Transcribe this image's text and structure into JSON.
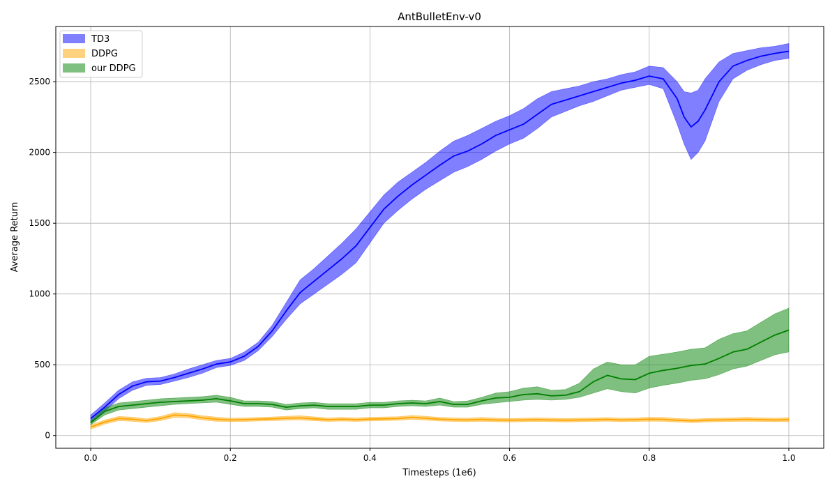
{
  "chart_data": {
    "type": "line",
    "title": "AntBulletEnv-v0",
    "xlabel": "Timesteps (1e6)",
    "ylabel": "Average Return",
    "xlim": [
      -0.05,
      1.05
    ],
    "ylim": [
      -90,
      2890
    ],
    "xticks": [
      0.0,
      0.2,
      0.4,
      0.6,
      0.8,
      1.0
    ],
    "xtick_labels": [
      "0.0",
      "0.2",
      "0.4",
      "0.6",
      "0.8",
      "1.0"
    ],
    "yticks": [
      0,
      500,
      1000,
      1500,
      2000,
      2500
    ],
    "ytick_labels": [
      "0",
      "500",
      "1000",
      "1500",
      "2000",
      "2500"
    ],
    "grid": true,
    "legend_position": "top-left",
    "x": [
      0.0,
      0.02,
      0.04,
      0.06,
      0.08,
      0.1,
      0.12,
      0.14,
      0.16,
      0.18,
      0.2,
      0.22,
      0.24,
      0.26,
      0.28,
      0.3,
      0.32,
      0.34,
      0.36,
      0.38,
      0.4,
      0.42,
      0.44,
      0.46,
      0.48,
      0.5,
      0.52,
      0.54,
      0.56,
      0.58,
      0.6,
      0.62,
      0.64,
      0.66,
      0.68,
      0.7,
      0.72,
      0.74,
      0.76,
      0.78,
      0.8,
      0.82,
      0.84,
      0.85,
      0.86,
      0.87,
      0.88,
      0.9,
      0.92,
      0.94,
      0.96,
      0.98,
      1.0
    ],
    "series": [
      {
        "name": "TD3",
        "color": "#0000ff",
        "mean": [
          120,
          200,
          290,
          350,
          380,
          385,
          410,
          440,
          470,
          505,
          520,
          560,
          630,
          740,
          880,
          1010,
          1090,
          1170,
          1250,
          1340,
          1470,
          1600,
          1690,
          1770,
          1840,
          1910,
          1975,
          2010,
          2060,
          2120,
          2160,
          2200,
          2270,
          2340,
          2370,
          2400,
          2430,
          2460,
          2490,
          2510,
          2540,
          2520,
          2380,
          2250,
          2180,
          2220,
          2300,
          2500,
          2610,
          2650,
          2680,
          2700,
          2715
        ],
        "lower": [
          95,
          170,
          260,
          320,
          355,
          360,
          385,
          410,
          440,
          480,
          495,
          530,
          600,
          700,
          820,
          930,
          1000,
          1070,
          1140,
          1220,
          1360,
          1500,
          1590,
          1670,
          1740,
          1800,
          1860,
          1900,
          1950,
          2010,
          2060,
          2100,
          2170,
          2250,
          2290,
          2330,
          2360,
          2400,
          2440,
          2460,
          2480,
          2450,
          2200,
          2060,
          1950,
          2000,
          2080,
          2360,
          2520,
          2580,
          2620,
          2650,
          2665
        ],
        "upper": [
          145,
          230,
          320,
          380,
          405,
          410,
          435,
          470,
          500,
          530,
          545,
          590,
          660,
          780,
          940,
          1100,
          1180,
          1270,
          1360,
          1460,
          1580,
          1700,
          1790,
          1860,
          1930,
          2010,
          2080,
          2120,
          2170,
          2220,
          2260,
          2310,
          2380,
          2430,
          2450,
          2470,
          2500,
          2520,
          2550,
          2570,
          2610,
          2600,
          2500,
          2430,
          2420,
          2440,
          2520,
          2640,
          2700,
          2720,
          2740,
          2750,
          2770
        ]
      },
      {
        "name": "DDPG",
        "color": "#ffa500",
        "mean": [
          60,
          95,
          120,
          115,
          105,
          120,
          145,
          140,
          125,
          115,
          110,
          112,
          115,
          118,
          122,
          125,
          118,
          112,
          115,
          112,
          116,
          118,
          120,
          128,
          122,
          115,
          112,
          110,
          114,
          110,
          108,
          110,
          112,
          110,
          108,
          110,
          112,
          114,
          110,
          112,
          115,
          114,
          108,
          106,
          104,
          105,
          108,
          110,
          112,
          114,
          112,
          110,
          112
        ],
        "lower": [
          45,
          80,
          105,
          100,
          92,
          105,
          128,
          125,
          110,
          100,
          97,
          99,
          102,
          105,
          108,
          110,
          104,
          99,
          102,
          99,
          103,
          105,
          107,
          114,
          108,
          102,
          99,
          97,
          100,
          97,
          95,
          97,
          99,
          97,
          95,
          97,
          99,
          101,
          97,
          99,
          101,
          100,
          95,
          93,
          91,
          92,
          95,
          97,
          99,
          100,
          99,
          97,
          98
        ],
        "upper": [
          75,
          110,
          135,
          130,
          118,
          135,
          162,
          155,
          140,
          130,
          123,
          125,
          128,
          131,
          136,
          140,
          132,
          125,
          128,
          125,
          129,
          131,
          133,
          142,
          136,
          128,
          125,
          123,
          128,
          123,
          121,
          123,
          125,
          123,
          121,
          123,
          125,
          127,
          123,
          125,
          129,
          128,
          121,
          119,
          117,
          118,
          121,
          123,
          125,
          128,
          125,
          123,
          126
        ]
      },
      {
        "name": "our DDPG",
        "color": "#008000",
        "mean": [
          90,
          170,
          205,
          215,
          225,
          235,
          240,
          245,
          250,
          260,
          245,
          225,
          225,
          220,
          200,
          210,
          215,
          205,
          205,
          205,
          215,
          215,
          225,
          230,
          225,
          240,
          220,
          220,
          245,
          265,
          270,
          290,
          295,
          280,
          285,
          310,
          380,
          425,
          400,
          395,
          440,
          460,
          475,
          485,
          495,
          500,
          505,
          545,
          590,
          610,
          660,
          710,
          745
        ],
        "lower": [
          75,
          145,
          180,
          190,
          200,
          210,
          220,
          225,
          230,
          235,
          220,
          205,
          205,
          200,
          180,
          190,
          195,
          185,
          185,
          185,
          195,
          195,
          205,
          210,
          205,
          215,
          200,
          200,
          220,
          230,
          240,
          250,
          255,
          250,
          255,
          270,
          300,
          330,
          310,
          300,
          335,
          355,
          370,
          380,
          390,
          395,
          400,
          430,
          470,
          490,
          530,
          570,
          590
        ],
        "upper": [
          105,
          195,
          230,
          240,
          250,
          260,
          265,
          270,
          275,
          285,
          270,
          245,
          245,
          240,
          220,
          230,
          235,
          225,
          225,
          225,
          235,
          235,
          245,
          250,
          245,
          265,
          240,
          245,
          270,
          300,
          310,
          335,
          345,
          320,
          325,
          370,
          470,
          520,
          500,
          500,
          560,
          575,
          590,
          600,
          610,
          615,
          620,
          680,
          720,
          740,
          800,
          860,
          900
        ]
      }
    ]
  }
}
